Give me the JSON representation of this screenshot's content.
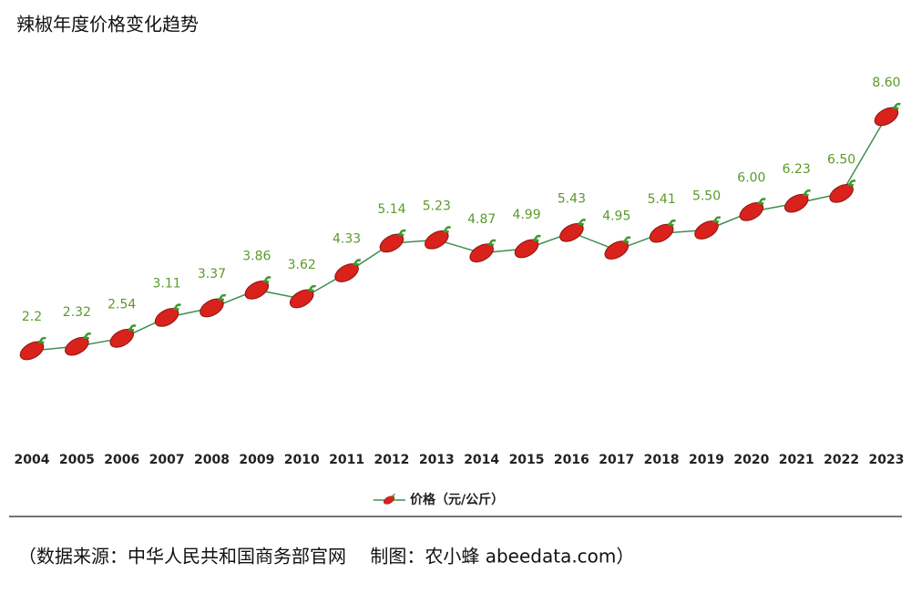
{
  "chart_data": {
    "type": "line",
    "title": "辣椒年度价格变化趋势",
    "categories": [
      "2004",
      "2005",
      "2006",
      "2007",
      "2008",
      "2009",
      "2010",
      "2011",
      "2012",
      "2013",
      "2014",
      "2015",
      "2016",
      "2017",
      "2018",
      "2019",
      "2020",
      "2021",
      "2022",
      "2023"
    ],
    "series": [
      {
        "name": "价格（元/公斤）",
        "color": "#3d8f4f",
        "values": [
          2.2,
          2.32,
          2.54,
          3.11,
          3.37,
          3.86,
          3.62,
          4.33,
          5.14,
          5.23,
          4.87,
          4.99,
          5.43,
          4.95,
          5.41,
          5.5,
          6.0,
          6.23,
          6.5,
          8.6
        ],
        "value_labels": [
          "2.2",
          "2.32",
          "2.54",
          "3.11",
          "3.37",
          "3.86",
          "3.62",
          "4.33",
          "5.14",
          "5.23",
          "4.87",
          "4.99",
          "5.43",
          "4.95",
          "5.41",
          "5.50",
          "6.00",
          "6.23",
          "6.50",
          "8.60"
        ]
      }
    ],
    "label_color": "#5a9a2a",
    "footer": "（数据来源：中华人民共和国商务部官网　 制图：农小蜂 abeedata.com）"
  }
}
